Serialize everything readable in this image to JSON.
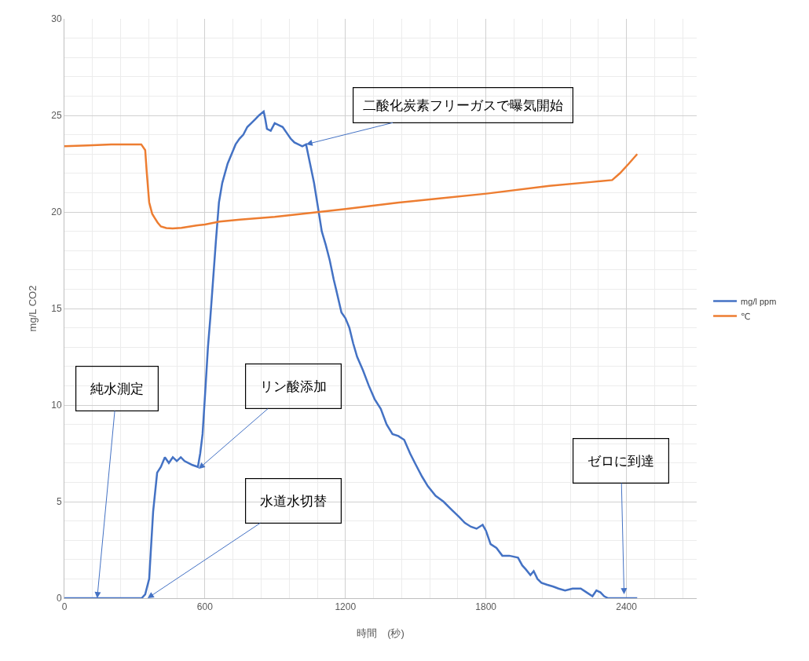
{
  "chart_data": {
    "type": "line",
    "xlabel": "時間　(秒)",
    "ylabel": "mg/L CO2",
    "xlim": [
      0,
      2700
    ],
    "xticks": [
      0,
      600,
      1200,
      1800,
      2400
    ],
    "ylim": [
      0,
      30
    ],
    "yticks": [
      0,
      5,
      10,
      15,
      20,
      25,
      30
    ],
    "grid": true,
    "legend": "right",
    "marker": "none",
    "line_style": "solid",
    "series": [
      {
        "name": "mg/l ppm",
        "color": "#4472c4",
        "x": [
          0,
          100,
          200,
          300,
          330,
          345,
          362,
          379,
          396,
          412,
          429,
          446,
          463,
          480,
          497,
          513,
          530,
          546,
          570,
          580,
          590,
          603,
          613,
          623,
          635,
          647,
          660,
          674,
          697,
          714,
          731,
          748,
          764,
          781,
          798,
          815,
          831,
          851,
          858,
          865,
          881,
          898,
          915,
          932,
          949,
          966,
          982,
          999,
          1016,
          1032,
          1049,
          1066,
          1082,
          1099,
          1116,
          1133,
          1150,
          1160,
          1183,
          1200,
          1217,
          1233,
          1250,
          1275,
          1300,
          1325,
          1351,
          1376,
          1401,
          1426,
          1451,
          1476,
          1501,
          1527,
          1552,
          1585,
          1619,
          1652,
          1686,
          1710,
          1736,
          1760,
          1786,
          1800,
          1820,
          1845,
          1870,
          1900,
          1937,
          1955,
          1970,
          1990,
          2004,
          2020,
          2037,
          2060,
          2088,
          2110,
          2138,
          2170,
          2205,
          2230,
          2255,
          2272,
          2289,
          2305,
          2322,
          2380,
          2446
        ],
        "values": [
          0,
          0,
          0,
          0,
          0,
          0.2,
          1.0,
          4.5,
          6.5,
          6.8,
          7.3,
          7.0,
          7.3,
          7.1,
          7.3,
          7.1,
          7.0,
          6.9,
          6.8,
          7.5,
          8.5,
          11.0,
          13.0,
          14.5,
          16.5,
          18.5,
          20.5,
          21.5,
          22.5,
          23.0,
          23.5,
          23.8,
          24.0,
          24.4,
          24.6,
          24.8,
          25.0,
          25.2,
          24.8,
          24.3,
          24.2,
          24.6,
          24.5,
          24.4,
          24.1,
          23.8,
          23.6,
          23.5,
          23.4,
          23.5,
          22.5,
          21.5,
          20.3,
          19.0,
          18.3,
          17.5,
          16.5,
          16.0,
          14.8,
          14.5,
          14.0,
          13.2,
          12.5,
          11.8,
          11.0,
          10.3,
          9.8,
          9.0,
          8.5,
          8.4,
          8.2,
          7.5,
          6.9,
          6.3,
          5.8,
          5.3,
          5.0,
          4.6,
          4.2,
          3.9,
          3.7,
          3.6,
          3.8,
          3.5,
          2.8,
          2.6,
          2.2,
          2.2,
          2.1,
          1.7,
          1.5,
          1.2,
          1.4,
          1.0,
          0.8,
          0.7,
          0.6,
          0.5,
          0.4,
          0.5,
          0.5,
          0.3,
          0.1,
          0.4,
          0.3,
          0.1,
          0,
          0,
          0
        ]
      },
      {
        "name": "℃",
        "color": "#ed7d31",
        "x": [
          0,
          100,
          200,
          300,
          328,
          345,
          352,
          362,
          375,
          385,
          398,
          412,
          435,
          462,
          500,
          563,
          600,
          663,
          750,
          898,
          1050,
          1200,
          1400,
          1602,
          1803,
          2071,
          2250,
          2339,
          2372,
          2410,
          2446
        ],
        "values": [
          23.4,
          23.45,
          23.5,
          23.5,
          23.5,
          23.2,
          22.0,
          20.5,
          19.9,
          19.7,
          19.45,
          19.25,
          19.17,
          19.15,
          19.18,
          19.3,
          19.35,
          19.5,
          19.6,
          19.75,
          19.95,
          20.15,
          20.45,
          20.7,
          20.95,
          21.35,
          21.55,
          21.65,
          22.0,
          22.5,
          23.0
        ]
      }
    ],
    "annotations": [
      {
        "text": "純水測定",
        "x": 140,
        "y": 0
      },
      {
        "text": "リン酸添加",
        "x": 573,
        "y": 6.7
      },
      {
        "text": "水道水切替",
        "x": 355,
        "y": 0
      },
      {
        "text": "二酸化炭素フリーガスで曝気開始",
        "x": 1032,
        "y": 23.5
      },
      {
        "text": "ゼロに到達",
        "x": 2390,
        "y": 0.2
      }
    ]
  }
}
